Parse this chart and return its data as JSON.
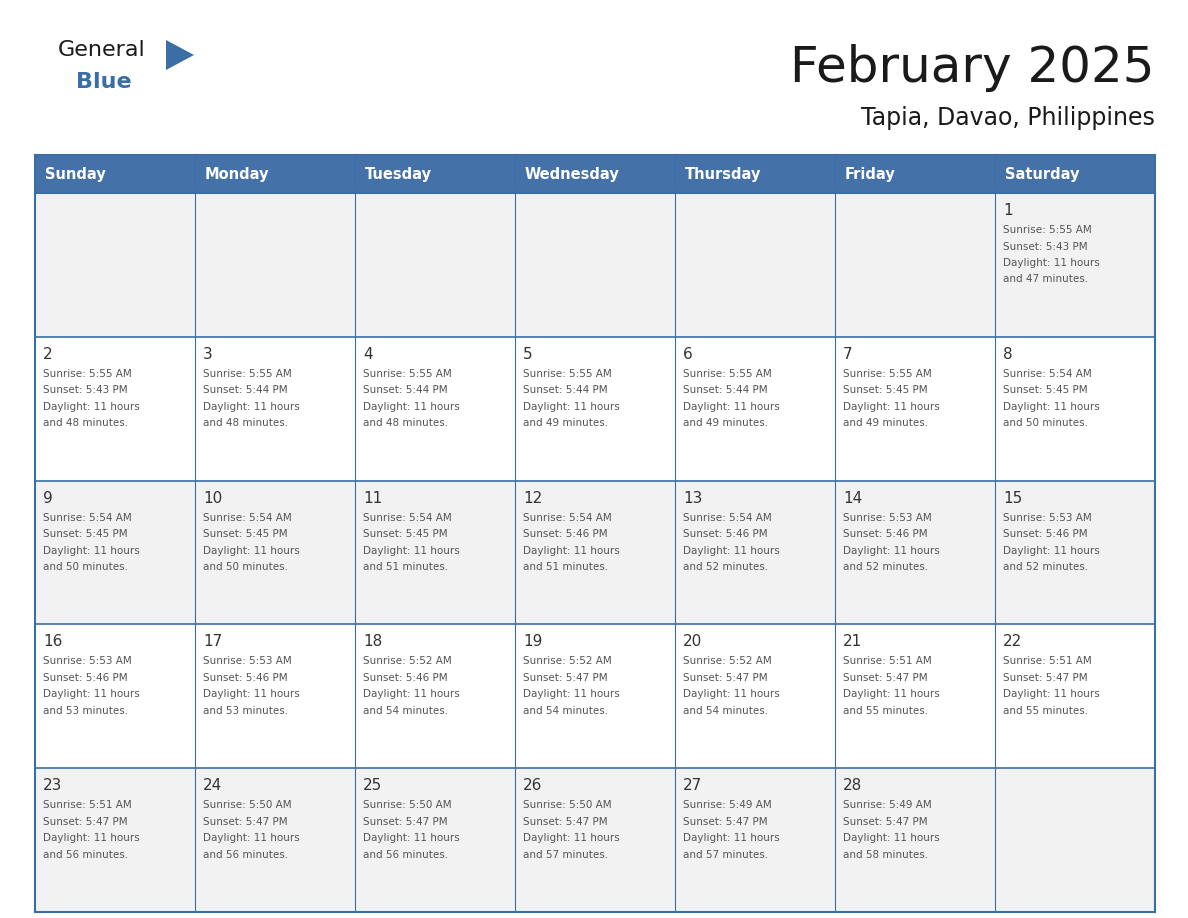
{
  "title": "February 2025",
  "subtitle": "Tapia, Davao, Philippines",
  "header_bg": "#4472a8",
  "header_text": "#FFFFFF",
  "cell_bg_row0": "#F2F2F2",
  "cell_bg_row1": "#FFFFFF",
  "cell_bg_row2": "#F2F2F2",
  "cell_bg_row3": "#FFFFFF",
  "cell_bg_row4": "#F2F2F2",
  "border_color": "#3A6EA5",
  "day_headers": [
    "Sunday",
    "Monday",
    "Tuesday",
    "Wednesday",
    "Thursday",
    "Friday",
    "Saturday"
  ],
  "days": [
    {
      "day": 1,
      "col": 6,
      "row": 0,
      "sunrise": "5:55 AM",
      "sunset": "5:43 PM",
      "daylight": "11 hours and 47 minutes."
    },
    {
      "day": 2,
      "col": 0,
      "row": 1,
      "sunrise": "5:55 AM",
      "sunset": "5:43 PM",
      "daylight": "11 hours and 48 minutes."
    },
    {
      "day": 3,
      "col": 1,
      "row": 1,
      "sunrise": "5:55 AM",
      "sunset": "5:44 PM",
      "daylight": "11 hours and 48 minutes."
    },
    {
      "day": 4,
      "col": 2,
      "row": 1,
      "sunrise": "5:55 AM",
      "sunset": "5:44 PM",
      "daylight": "11 hours and 48 minutes."
    },
    {
      "day": 5,
      "col": 3,
      "row": 1,
      "sunrise": "5:55 AM",
      "sunset": "5:44 PM",
      "daylight": "11 hours and 49 minutes."
    },
    {
      "day": 6,
      "col": 4,
      "row": 1,
      "sunrise": "5:55 AM",
      "sunset": "5:44 PM",
      "daylight": "11 hours and 49 minutes."
    },
    {
      "day": 7,
      "col": 5,
      "row": 1,
      "sunrise": "5:55 AM",
      "sunset": "5:45 PM",
      "daylight": "11 hours and 49 minutes."
    },
    {
      "day": 8,
      "col": 6,
      "row": 1,
      "sunrise": "5:54 AM",
      "sunset": "5:45 PM",
      "daylight": "11 hours and 50 minutes."
    },
    {
      "day": 9,
      "col": 0,
      "row": 2,
      "sunrise": "5:54 AM",
      "sunset": "5:45 PM",
      "daylight": "11 hours and 50 minutes."
    },
    {
      "day": 10,
      "col": 1,
      "row": 2,
      "sunrise": "5:54 AM",
      "sunset": "5:45 PM",
      "daylight": "11 hours and 50 minutes."
    },
    {
      "day": 11,
      "col": 2,
      "row": 2,
      "sunrise": "5:54 AM",
      "sunset": "5:45 PM",
      "daylight": "11 hours and 51 minutes."
    },
    {
      "day": 12,
      "col": 3,
      "row": 2,
      "sunrise": "5:54 AM",
      "sunset": "5:46 PM",
      "daylight": "11 hours and 51 minutes."
    },
    {
      "day": 13,
      "col": 4,
      "row": 2,
      "sunrise": "5:54 AM",
      "sunset": "5:46 PM",
      "daylight": "11 hours and 52 minutes."
    },
    {
      "day": 14,
      "col": 5,
      "row": 2,
      "sunrise": "5:53 AM",
      "sunset": "5:46 PM",
      "daylight": "11 hours and 52 minutes."
    },
    {
      "day": 15,
      "col": 6,
      "row": 2,
      "sunrise": "5:53 AM",
      "sunset": "5:46 PM",
      "daylight": "11 hours and 52 minutes."
    },
    {
      "day": 16,
      "col": 0,
      "row": 3,
      "sunrise": "5:53 AM",
      "sunset": "5:46 PM",
      "daylight": "11 hours and 53 minutes."
    },
    {
      "day": 17,
      "col": 1,
      "row": 3,
      "sunrise": "5:53 AM",
      "sunset": "5:46 PM",
      "daylight": "11 hours and 53 minutes."
    },
    {
      "day": 18,
      "col": 2,
      "row": 3,
      "sunrise": "5:52 AM",
      "sunset": "5:46 PM",
      "daylight": "11 hours and 54 minutes."
    },
    {
      "day": 19,
      "col": 3,
      "row": 3,
      "sunrise": "5:52 AM",
      "sunset": "5:47 PM",
      "daylight": "11 hours and 54 minutes."
    },
    {
      "day": 20,
      "col": 4,
      "row": 3,
      "sunrise": "5:52 AM",
      "sunset": "5:47 PM",
      "daylight": "11 hours and 54 minutes."
    },
    {
      "day": 21,
      "col": 5,
      "row": 3,
      "sunrise": "5:51 AM",
      "sunset": "5:47 PM",
      "daylight": "11 hours and 55 minutes."
    },
    {
      "day": 22,
      "col": 6,
      "row": 3,
      "sunrise": "5:51 AM",
      "sunset": "5:47 PM",
      "daylight": "11 hours and 55 minutes."
    },
    {
      "day": 23,
      "col": 0,
      "row": 4,
      "sunrise": "5:51 AM",
      "sunset": "5:47 PM",
      "daylight": "11 hours and 56 minutes."
    },
    {
      "day": 24,
      "col": 1,
      "row": 4,
      "sunrise": "5:50 AM",
      "sunset": "5:47 PM",
      "daylight": "11 hours and 56 minutes."
    },
    {
      "day": 25,
      "col": 2,
      "row": 4,
      "sunrise": "5:50 AM",
      "sunset": "5:47 PM",
      "daylight": "11 hours and 56 minutes."
    },
    {
      "day": 26,
      "col": 3,
      "row": 4,
      "sunrise": "5:50 AM",
      "sunset": "5:47 PM",
      "daylight": "11 hours and 57 minutes."
    },
    {
      "day": 27,
      "col": 4,
      "row": 4,
      "sunrise": "5:49 AM",
      "sunset": "5:47 PM",
      "daylight": "11 hours and 57 minutes."
    },
    {
      "day": 28,
      "col": 5,
      "row": 4,
      "sunrise": "5:49 AM",
      "sunset": "5:47 PM",
      "daylight": "11 hours and 58 minutes."
    }
  ],
  "num_rows": 5,
  "num_cols": 7,
  "logo_text_general": "General",
  "logo_text_blue": "Blue",
  "logo_triangle_color": "#3A6EA5",
  "logo_general_color": "#1a1a1a",
  "logo_blue_color": "#3A6EA5",
  "title_color": "#1a1a1a",
  "subtitle_color": "#1a1a1a",
  "day_number_color": "#333333",
  "day_info_color": "#555555"
}
